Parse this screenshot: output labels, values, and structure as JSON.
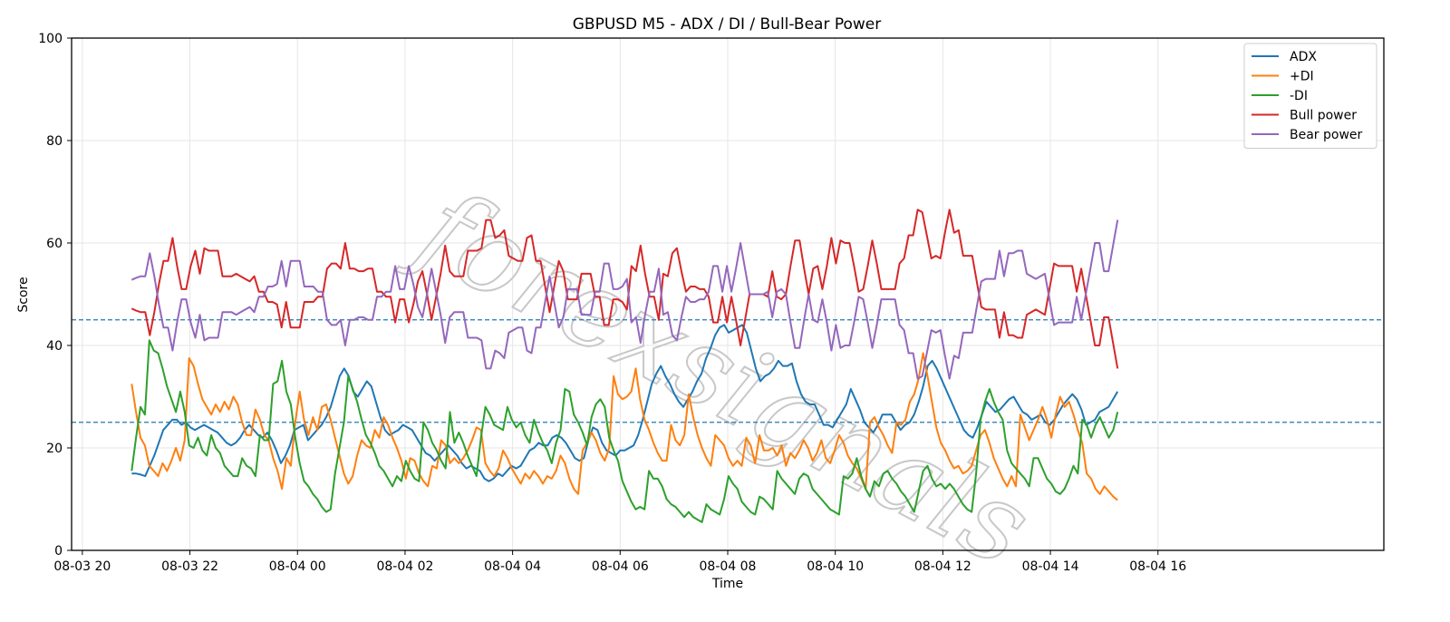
{
  "watermark": "forexsignals",
  "chart_data": {
    "type": "line",
    "title": "GBPUSD M5 - ADX / DI / Bull-Bear Power",
    "xlabel": "Time",
    "ylabel": "Score",
    "ylim": [
      0,
      100
    ],
    "yticks": [
      0,
      20,
      40,
      60,
      80,
      100
    ],
    "xlim_hours": [
      -4.2,
      20.2
    ],
    "xticks": [
      {
        "label": "08-03 20",
        "hour": -4
      },
      {
        "label": "08-03 22",
        "hour": -2
      },
      {
        "label": "08-04 00",
        "hour": 0
      },
      {
        "label": "08-04 02",
        "hour": 2
      },
      {
        "label": "08-04 04",
        "hour": 4
      },
      {
        "label": "08-04 06",
        "hour": 6
      },
      {
        "label": "08-04 08",
        "hour": 8
      },
      {
        "label": "08-04 10",
        "hour": 10
      },
      {
        "label": "08-04 12",
        "hour": 12
      },
      {
        "label": "08-04 14",
        "hour": 14
      },
      {
        "label": "08-04 16",
        "hour": 16
      }
    ],
    "grid": true,
    "legend_position": "top-right",
    "reference_lines": [
      {
        "y": 45,
        "color": "#1f77b4",
        "style": "dashed"
      },
      {
        "y": 25,
        "color": "#1f77b4",
        "style": "dashed"
      }
    ],
    "x_start": "08-03 20:55",
    "x_end": "08-04 15:15",
    "series": [
      {
        "name": "ADX",
        "color": "#1f77b4",
        "values": [
          15.0,
          15.0,
          14.8,
          14.5,
          16.5,
          18.5,
          21.0,
          23.5,
          24.5,
          25.5,
          25.5,
          24.5,
          25.0,
          24.0,
          23.5,
          24.0,
          24.5,
          24.0,
          23.5,
          23.0,
          22.0,
          21.0,
          20.5,
          21.0,
          22.0,
          23.5,
          24.5,
          23.5,
          22.5,
          22.0,
          23.0,
          21.5,
          19.5,
          17.0,
          18.5,
          20.5,
          23.5,
          24.0,
          24.5,
          21.5,
          22.5,
          23.5,
          24.5,
          26.0,
          28.0,
          31.0,
          34.0,
          35.5,
          34.0,
          31.0,
          30.0,
          31.5,
          33.0,
          32.0,
          29.0,
          26.0,
          23.5,
          22.5,
          23.0,
          23.5,
          24.5,
          24.0,
          23.5,
          22.0,
          20.5,
          19.0,
          18.5,
          17.5,
          18.5,
          19.5,
          20.5,
          19.5,
          18.5,
          17.0,
          16.0,
          16.5,
          16.0,
          15.5,
          14.0,
          13.5,
          14.0,
          15.0,
          14.5,
          15.5,
          16.5,
          16.0,
          16.5,
          18.0,
          19.5,
          20.0,
          21.0,
          20.5,
          20.5,
          22.0,
          22.5,
          22.0,
          21.0,
          19.5,
          18.0,
          17.5,
          18.0,
          21.5,
          24.0,
          23.5,
          21.0,
          19.5,
          19.0,
          18.5,
          19.5,
          19.5,
          20.0,
          20.5,
          22.5,
          25.5,
          29.0,
          32.5,
          34.5,
          36.0,
          34.0,
          32.5,
          30.5,
          29.0,
          28.0,
          29.5,
          31.0,
          33.0,
          34.5,
          37.5,
          39.5,
          42.0,
          43.5,
          44.0,
          42.5,
          43.0,
          43.5,
          44.0,
          42.5,
          39.0,
          35.5,
          33.0,
          34.0,
          34.5,
          35.5,
          37.0,
          36.0,
          36.0,
          36.5,
          33.0,
          30.5,
          29.0,
          28.5,
          28.5,
          26.5,
          24.5,
          24.5,
          24.0,
          25.5,
          27.0,
          28.5,
          31.5,
          29.5,
          27.5,
          25.0,
          24.0,
          23.0,
          24.5,
          26.5,
          26.5,
          26.5,
          25.0,
          23.5,
          24.5,
          25.0,
          26.5,
          29.0,
          32.0,
          36.0,
          37.0,
          35.5,
          33.5,
          31.5,
          29.5,
          27.5,
          25.5,
          23.5,
          22.5,
          22.0,
          24.0,
          26.5,
          29.0,
          28.0,
          27.0,
          27.5,
          28.5,
          29.5,
          30.0,
          28.5,
          27.0,
          26.5,
          25.5,
          26.0,
          26.5,
          25.0,
          24.5,
          25.5,
          27.0,
          28.5,
          29.5,
          30.5,
          29.5,
          27.5,
          24.5,
          25.0,
          25.5,
          27.0,
          27.5,
          28.0,
          29.5,
          31.0
        ]
      },
      {
        "name": "+DI",
        "color": "#ff7f0e",
        "values": [
          32.5,
          27.0,
          22.0,
          20.5,
          16.5,
          15.5,
          14.5,
          17.0,
          15.5,
          17.5,
          20.0,
          17.5,
          21.5,
          37.5,
          36.0,
          32.5,
          29.5,
          28.0,
          26.5,
          28.5,
          27.0,
          29.0,
          27.5,
          30.0,
          28.5,
          25.0,
          22.5,
          22.5,
          27.5,
          25.5,
          22.5,
          21.5,
          18.0,
          15.5,
          12.0,
          18.0,
          16.5,
          25.0,
          31.0,
          25.5,
          22.5,
          26.0,
          23.5,
          28.0,
          28.5,
          25.5,
          22.0,
          18.5,
          15.0,
          13.0,
          14.5,
          18.5,
          21.5,
          20.5,
          20.0,
          23.5,
          22.0,
          26.0,
          24.5,
          22.0,
          20.0,
          17.5,
          14.0,
          18.0,
          17.5,
          15.0,
          13.5,
          12.5,
          16.5,
          16.0,
          21.5,
          20.5,
          17.0,
          18.0,
          17.0,
          18.0,
          19.5,
          21.5,
          24.0,
          23.5,
          17.0,
          15.5,
          14.5,
          16.0,
          19.5,
          18.0,
          16.0,
          14.5,
          13.0,
          15.0,
          14.0,
          15.5,
          14.5,
          13.0,
          14.5,
          14.0,
          15.5,
          18.5,
          17.0,
          14.0,
          12.0,
          11.0,
          19.5,
          21.0,
          23.0,
          21.5,
          19.0,
          17.5,
          20.0,
          34.0,
          30.5,
          29.5,
          30.0,
          31.0,
          35.5,
          29.5,
          25.5,
          23.5,
          21.0,
          19.0,
          17.5,
          17.5,
          24.5,
          21.5,
          20.5,
          22.5,
          30.5,
          26.0,
          22.5,
          20.0,
          18.0,
          16.5,
          22.5,
          21.5,
          20.5,
          18.0,
          16.5,
          17.5,
          16.5,
          22.0,
          20.5,
          17.0,
          22.5,
          19.5,
          19.5,
          20.0,
          18.5,
          20.5,
          16.5,
          19.0,
          18.0,
          19.5,
          21.5,
          20.0,
          17.5,
          19.0,
          21.5,
          18.0,
          17.0,
          19.5,
          22.5,
          21.0,
          18.5,
          17.0,
          16.0,
          14.0,
          12.0,
          25.0,
          26.0,
          24.0,
          22.5,
          20.5,
          19.0,
          25.0,
          24.5,
          25.5,
          29.0,
          30.5,
          33.5,
          38.5,
          34.0,
          29.0,
          24.0,
          21.0,
          19.5,
          17.5,
          16.0,
          16.5,
          15.0,
          15.5,
          16.5,
          19.5,
          22.5,
          23.5,
          21.0,
          18.0,
          16.0,
          14.0,
          12.5,
          14.5,
          12.5,
          26.5,
          24.0,
          21.5,
          23.5,
          25.5,
          28.0,
          25.5,
          22.0,
          26.5,
          30.0,
          28.0,
          29.0,
          26.5,
          23.5,
          21.0,
          15.0,
          14.0,
          12.0,
          11.0,
          12.5,
          11.5,
          10.5,
          9.8
        ]
      },
      {
        "name": "-DI",
        "color": "#2ca02c",
        "values": [
          15.5,
          22.0,
          28.0,
          26.5,
          41.0,
          39.0,
          38.5,
          35.5,
          32.0,
          29.5,
          27.0,
          31.0,
          27.0,
          20.5,
          20.0,
          22.0,
          19.5,
          18.5,
          22.5,
          20.0,
          19.0,
          16.5,
          15.5,
          14.5,
          14.5,
          18.0,
          16.5,
          16.0,
          14.5,
          22.5,
          21.5,
          21.5,
          32.5,
          33.0,
          37.0,
          31.0,
          28.5,
          22.0,
          17.0,
          13.5,
          12.5,
          11.0,
          10.0,
          8.5,
          7.5,
          8.0,
          15.0,
          20.0,
          25.0,
          34.0,
          31.5,
          29.0,
          25.5,
          22.5,
          21.0,
          19.0,
          16.5,
          15.5,
          14.0,
          12.5,
          14.5,
          13.5,
          17.5,
          15.5,
          14.0,
          13.5,
          25.0,
          23.5,
          21.0,
          19.5,
          17.5,
          16.0,
          27.0,
          21.0,
          23.0,
          21.0,
          18.5,
          16.5,
          14.5,
          22.0,
          28.0,
          26.5,
          24.5,
          24.0,
          23.5,
          28.0,
          25.5,
          24.0,
          25.0,
          22.5,
          21.0,
          25.5,
          23.0,
          21.0,
          19.5,
          17.0,
          21.0,
          23.5,
          31.5,
          31.0,
          26.5,
          25.0,
          23.0,
          20.5,
          26.0,
          28.5,
          29.5,
          28.0,
          22.0,
          19.5,
          17.5,
          13.5,
          11.5,
          9.5,
          8.0,
          8.5,
          8.0,
          15.5,
          14.0,
          14.0,
          12.5,
          10.0,
          9.0,
          8.5,
          7.5,
          6.5,
          7.5,
          6.5,
          6.0,
          5.5,
          9.0,
          8.0,
          7.5,
          7.0,
          10.0,
          14.5,
          13.0,
          12.0,
          9.5,
          8.5,
          7.5,
          7.0,
          10.5,
          10.0,
          9.0,
          8.0,
          15.5,
          14.0,
          13.0,
          12.0,
          11.0,
          14.0,
          15.0,
          14.5,
          12.0,
          11.0,
          10.0,
          9.0,
          8.0,
          7.5,
          7.0,
          14.5,
          14.0,
          15.0,
          18.0,
          14.5,
          12.0,
          10.5,
          13.5,
          12.5,
          15.0,
          15.5,
          14.0,
          13.0,
          11.5,
          10.5,
          9.0,
          7.5,
          11.5,
          15.5,
          16.5,
          14.0,
          12.5,
          13.0,
          12.0,
          13.0,
          12.0,
          10.5,
          9.0,
          8.0,
          7.5,
          15.0,
          25.5,
          29.0,
          31.5,
          29.0,
          27.0,
          25.5,
          19.5,
          17.0,
          16.0,
          15.0,
          14.0,
          12.5,
          18.0,
          18.0,
          16.0,
          14.0,
          13.0,
          11.5,
          11.0,
          12.0,
          14.0,
          16.5,
          15.0,
          25.5,
          24.5,
          22.0,
          24.5,
          26.0,
          24.0,
          22.0,
          23.5,
          27.0
        ]
      },
      {
        "name": "Bull power",
        "color": "#d62728",
        "values": [
          47.2,
          46.8,
          46.5,
          46.5,
          42.0,
          46.5,
          52.0,
          56.5,
          56.5,
          61.0,
          55.5,
          51.0,
          51.0,
          55.5,
          58.5,
          54.0,
          59.0,
          58.5,
          58.5,
          58.5,
          53.5,
          53.5,
          53.5,
          54.0,
          53.5,
          53.0,
          52.5,
          53.5,
          50.5,
          50.5,
          48.5,
          48.5,
          48.0,
          43.5,
          48.5,
          43.5,
          43.5,
          43.5,
          48.5,
          48.5,
          48.5,
          49.5,
          49.5,
          55.0,
          56.0,
          56.0,
          55.0,
          60.0,
          55.0,
          55.0,
          54.5,
          54.5,
          55.0,
          55.0,
          50.5,
          50.5,
          49.5,
          49.5,
          44.5,
          49.0,
          49.0,
          44.5,
          48.0,
          52.5,
          54.5,
          50.0,
          45.0,
          49.5,
          54.0,
          59.5,
          54.5,
          53.5,
          53.5,
          53.5,
          58.5,
          58.5,
          58.5,
          59.0,
          64.5,
          64.5,
          61.0,
          61.5,
          62.5,
          57.5,
          57.0,
          56.5,
          56.5,
          61.0,
          61.5,
          56.5,
          56.5,
          51.5,
          46.5,
          51.5,
          56.5,
          54.5,
          49.0,
          49.0,
          49.0,
          54.0,
          54.0,
          54.0,
          49.5,
          49.5,
          44.0,
          44.0,
          49.0,
          49.0,
          48.5,
          47.0,
          55.5,
          54.5,
          59.5,
          54.0,
          49.5,
          49.5,
          45.0,
          54.0,
          53.5,
          58.0,
          59.0,
          54.5,
          50.5,
          51.5,
          51.5,
          51.0,
          51.0,
          49.5,
          44.5,
          44.5,
          49.5,
          44.5,
          49.5,
          45.0,
          40.0,
          45.0,
          50.0,
          50.0,
          50.0,
          50.0,
          49.5,
          54.5,
          49.5,
          49.0,
          50.0,
          55.5,
          60.5,
          60.5,
          55.0,
          50.0,
          55.0,
          55.5,
          51.0,
          55.5,
          61.0,
          56.0,
          60.5,
          60.0,
          60.0,
          55.5,
          50.5,
          51.0,
          55.5,
          60.5,
          56.0,
          51.0,
          51.0,
          51.0,
          51.0,
          56.0,
          57.0,
          61.5,
          61.5,
          66.5,
          66.0,
          61.5,
          57.0,
          57.5,
          57.0,
          62.0,
          66.5,
          62.0,
          62.5,
          57.5,
          57.5,
          57.5,
          52.5,
          47.5,
          47.0,
          47.0,
          47.0,
          41.5,
          46.5,
          42.0,
          42.0,
          41.5,
          41.5,
          46.0,
          46.5,
          47.0,
          46.5,
          46.0,
          51.0,
          56.0,
          55.5,
          55.5,
          55.5,
          55.5,
          50.5,
          55.0,
          50.0,
          45.0,
          40.0,
          40.0,
          45.5,
          45.5,
          40.5,
          35.5
        ]
      },
      {
        "name": "Bear power",
        "color": "#9467bd",
        "values": [
          52.8,
          53.2,
          53.5,
          53.5,
          58.0,
          53.5,
          48.0,
          43.5,
          43.5,
          39.0,
          44.5,
          49.0,
          49.0,
          44.5,
          41.5,
          46.0,
          41.0,
          41.5,
          41.5,
          41.5,
          46.5,
          46.5,
          46.5,
          46.0,
          46.5,
          47.0,
          47.5,
          46.5,
          49.5,
          49.5,
          51.5,
          51.5,
          52.0,
          56.5,
          51.5,
          56.5,
          56.5,
          56.5,
          51.5,
          51.5,
          51.5,
          50.5,
          50.5,
          45.0,
          44.0,
          44.0,
          45.0,
          40.0,
          45.0,
          45.0,
          45.5,
          45.5,
          45.0,
          45.0,
          49.5,
          49.5,
          50.5,
          50.5,
          55.5,
          51.0,
          51.0,
          55.5,
          52.0,
          47.5,
          45.5,
          50.0,
          55.0,
          50.5,
          46.0,
          40.5,
          45.5,
          46.5,
          46.5,
          46.5,
          41.5,
          41.5,
          41.5,
          41.0,
          35.5,
          35.5,
          39.0,
          38.5,
          37.5,
          42.5,
          43.0,
          43.5,
          43.5,
          39.0,
          38.5,
          43.5,
          43.5,
          48.5,
          53.5,
          48.5,
          43.5,
          45.5,
          51.0,
          51.0,
          51.0,
          46.0,
          46.0,
          46.0,
          50.5,
          50.5,
          56.0,
          56.0,
          51.0,
          51.0,
          51.5,
          53.0,
          44.5,
          45.5,
          40.5,
          46.0,
          50.5,
          50.5,
          55.0,
          46.0,
          46.5,
          42.0,
          41.0,
          45.5,
          49.5,
          48.5,
          48.5,
          49.0,
          49.0,
          50.5,
          55.5,
          55.5,
          50.5,
          55.5,
          50.5,
          55.0,
          60.0,
          55.0,
          50.0,
          50.0,
          50.0,
          50.0,
          50.5,
          45.5,
          50.5,
          51.0,
          50.0,
          44.5,
          39.5,
          39.5,
          45.0,
          50.0,
          45.0,
          44.5,
          49.0,
          44.5,
          39.0,
          44.0,
          39.5,
          40.0,
          40.0,
          44.5,
          49.5,
          49.0,
          44.5,
          39.5,
          44.0,
          49.0,
          49.0,
          49.0,
          49.0,
          44.0,
          43.0,
          38.5,
          38.5,
          33.5,
          34.0,
          38.5,
          43.0,
          42.5,
          43.0,
          38.0,
          33.5,
          38.0,
          37.5,
          42.5,
          42.5,
          42.5,
          47.5,
          52.5,
          53.0,
          53.0,
          53.0,
          58.5,
          53.5,
          58.0,
          58.0,
          58.5,
          58.5,
          54.0,
          53.5,
          53.0,
          53.5,
          54.0,
          49.0,
          44.0,
          44.5,
          44.5,
          44.5,
          44.5,
          49.5,
          45.0,
          50.0,
          55.0,
          60.0,
          60.0,
          54.5,
          54.5,
          59.5,
          64.5
        ]
      }
    ]
  }
}
